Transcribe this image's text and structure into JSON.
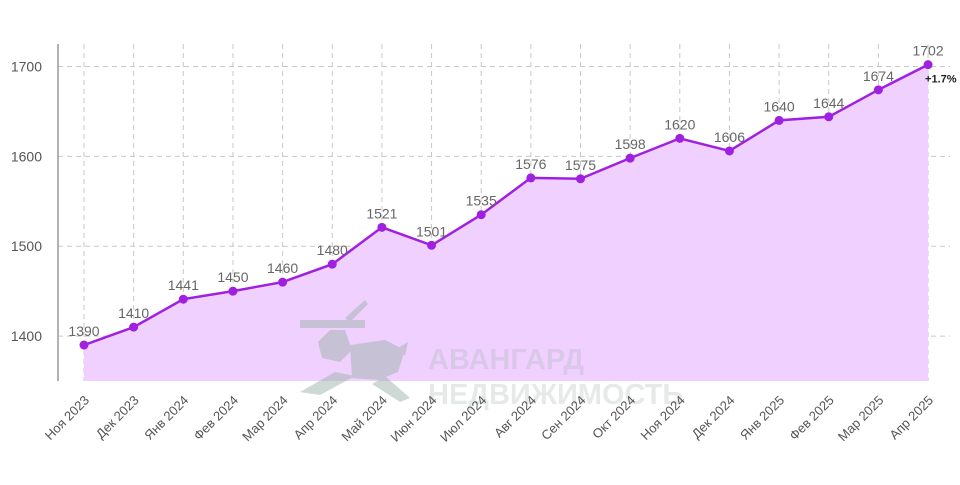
{
  "chart_data": {
    "type": "area",
    "categories": [
      "Ноя 2023",
      "Дек 2023",
      "Янв 2024",
      "Фев 2024",
      "Мар 2024",
      "Апр 2024",
      "Май 2024",
      "Июн 2024",
      "Июл 2024",
      "Авг 2024",
      "Сен 2024",
      "Окт 2024",
      "Ноя 2024",
      "Дек 2024",
      "Янв 2025",
      "Фев 2025",
      "Мар 2025",
      "Апр 2025"
    ],
    "values": [
      1390,
      1410,
      1441,
      1450,
      1460,
      1480,
      1521,
      1501,
      1535,
      1576,
      1575,
      1598,
      1620,
      1606,
      1640,
      1644,
      1674,
      1702
    ],
    "ylim": [
      1350,
      1725
    ],
    "yticks": [
      1400,
      1500,
      1600,
      1700
    ],
    "grid": true,
    "last_change_label": "+1.7%",
    "colors": {
      "line": "#a020e0",
      "fill": "#f0d0ff",
      "grid": "#c8c8c8"
    },
    "title": "",
    "xlabel": "",
    "ylabel": ""
  },
  "watermark": {
    "line1": "АВАНГАРД",
    "line2": "НЕДВИЖИМОСТЬ",
    "icon": "knight-statue-logo"
  }
}
